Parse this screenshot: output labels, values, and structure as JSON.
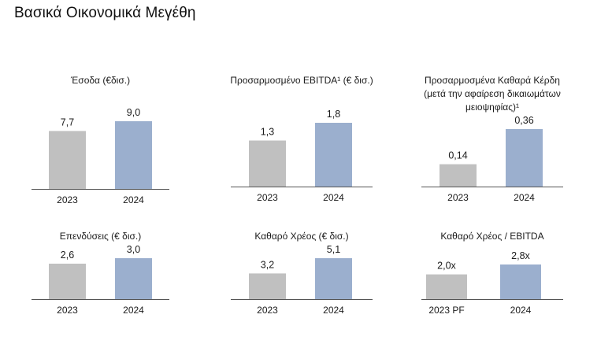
{
  "page": {
    "title": "Βασικά Οικονομικά Μεγέθη"
  },
  "colors": {
    "prior": "#c0c0c0",
    "current": "#9bafce",
    "axis": "#555555"
  },
  "chart_data": [
    {
      "type": "bar",
      "title": [
        "Έσοδα (€δισ.)"
      ],
      "categories": [
        "2023",
        "2024"
      ],
      "values": [
        7.7,
        9.0
      ],
      "value_labels": [
        "7,7",
        "9,0"
      ]
    },
    {
      "type": "bar",
      "title": [
        "Προσαρμοσμένο EBITDA¹ (€ δισ.)"
      ],
      "categories": [
        "2023",
        "2024"
      ],
      "values": [
        1.3,
        1.8
      ],
      "value_labels": [
        "1,3",
        "1,8"
      ]
    },
    {
      "type": "bar",
      "title": [
        "Προσαρμοσμένα Καθαρά Κέρδη",
        "(μετά την αφαίρεση δικαιωμάτων",
        "μειοψηφίας)¹"
      ],
      "categories": [
        "2023",
        "2024"
      ],
      "values": [
        0.14,
        0.36
      ],
      "value_labels": [
        "0,14",
        "0,36"
      ]
    },
    {
      "type": "bar",
      "title": [
        "Επενδύσεις (€ δισ.)"
      ],
      "categories": [
        "2023",
        "2024"
      ],
      "values": [
        2.6,
        3.0
      ],
      "value_labels": [
        "2,6",
        "3,0"
      ]
    },
    {
      "type": "bar",
      "title": [
        "Καθαρό Χρέος (€ δισ.)"
      ],
      "categories": [
        "2023",
        "2024"
      ],
      "values": [
        3.2,
        5.1
      ],
      "value_labels": [
        "3,2",
        "5,1"
      ]
    },
    {
      "type": "bar",
      "title": [
        "Καθαρό Χρέος / EBITDA"
      ],
      "categories": [
        "2023 PF",
        "2024"
      ],
      "values": [
        2.0,
        2.8
      ],
      "value_labels": [
        "2,0x",
        "2,8x"
      ]
    }
  ]
}
